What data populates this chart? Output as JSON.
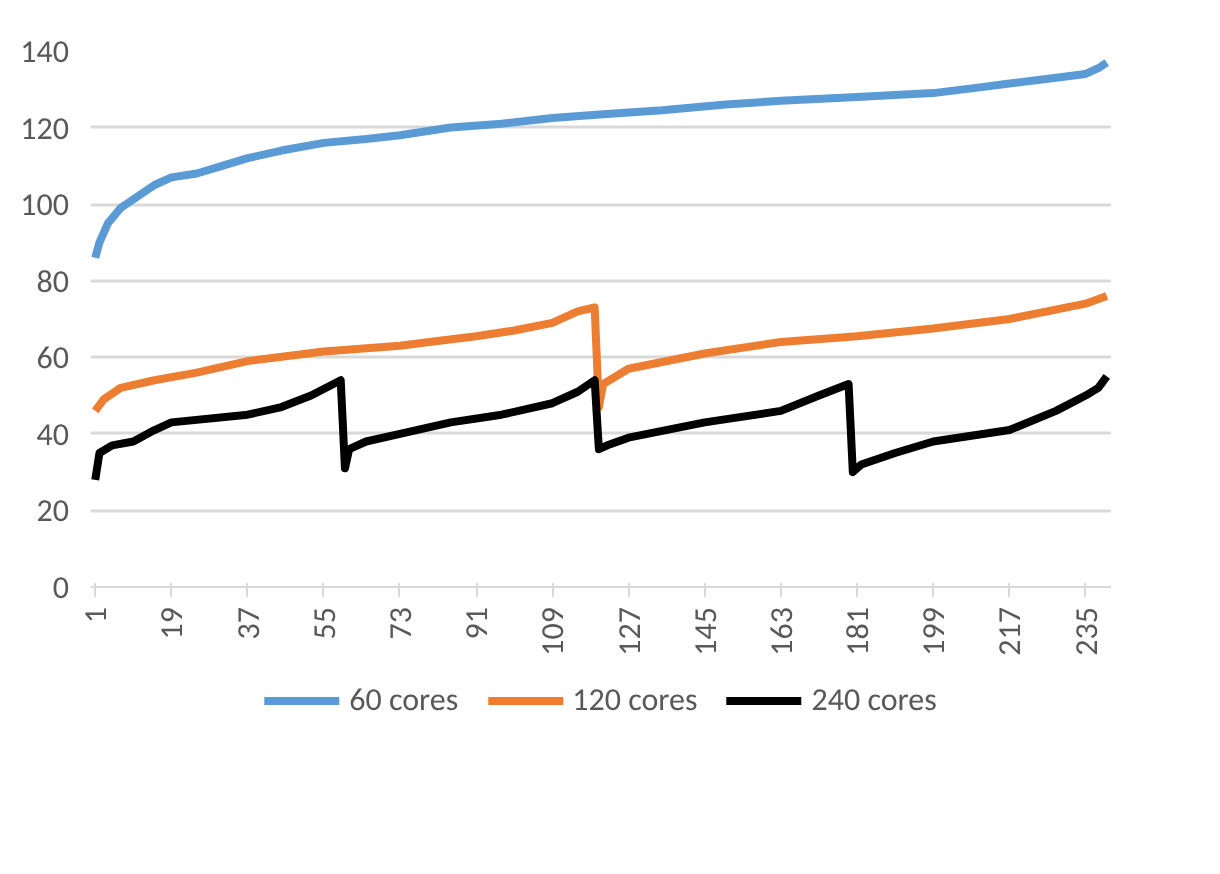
{
  "chart_data": {
    "type": "line",
    "ylim": [
      0,
      140
    ],
    "yticks": [
      0,
      20,
      40,
      60,
      80,
      100,
      120,
      140
    ],
    "xlim": [
      0,
      241
    ],
    "xticks": [
      1,
      19,
      37,
      55,
      73,
      91,
      109,
      127,
      145,
      163,
      181,
      199,
      217,
      235
    ],
    "grid": "y",
    "legend": "bottom",
    "line_style": "solid",
    "marker": "none",
    "series": [
      {
        "name": "60 cores",
        "color": "#5b9bd5",
        "x": [
          1,
          2,
          4,
          7,
          11,
          15,
          19,
          25,
          31,
          37,
          45,
          55,
          65,
          73,
          85,
          97,
          109,
          121,
          135,
          150,
          163,
          181,
          199,
          210,
          217,
          228,
          235,
          238,
          240
        ],
        "values": [
          86,
          90,
          95,
          99,
          102,
          105,
          107,
          108,
          110,
          112,
          114,
          116,
          117,
          118,
          120,
          121,
          122.5,
          123.5,
          124.5,
          126,
          127,
          128,
          129,
          130.5,
          131.5,
          133,
          134,
          135.5,
          137
        ]
      },
      {
        "name": "120 cores",
        "color": "#ed7d31",
        "x": [
          1,
          3,
          7,
          15,
          25,
          37,
          55,
          73,
          80,
          91,
          100,
          109,
          115,
          119,
          120,
          121,
          127,
          145,
          163,
          181,
          199,
          217,
          235,
          240
        ],
        "values": [
          46,
          49,
          52,
          54,
          56,
          59,
          61.5,
          63,
          64,
          65.5,
          67,
          69,
          72,
          73,
          47,
          53,
          57,
          61,
          64,
          65.5,
          67.5,
          70,
          74,
          76
        ]
      },
      {
        "name": "240 cores",
        "color": "#000000",
        "x": [
          1,
          2,
          5,
          10,
          15,
          19,
          37,
          45,
          52,
          59,
          60,
          61,
          65,
          73,
          85,
          97,
          109,
          115,
          119,
          120,
          122,
          127,
          145,
          163,
          172,
          179,
          180,
          182,
          190,
          199,
          217,
          228,
          235,
          238,
          240
        ],
        "values": [
          28,
          35,
          37,
          38,
          41,
          43,
          45,
          47,
          50,
          54,
          31,
          36,
          38,
          40,
          43,
          45,
          48,
          51,
          54,
          36,
          37,
          39,
          43,
          46,
          50,
          53,
          30,
          32,
          35,
          38,
          41,
          46,
          50,
          52,
          55
        ]
      }
    ]
  }
}
